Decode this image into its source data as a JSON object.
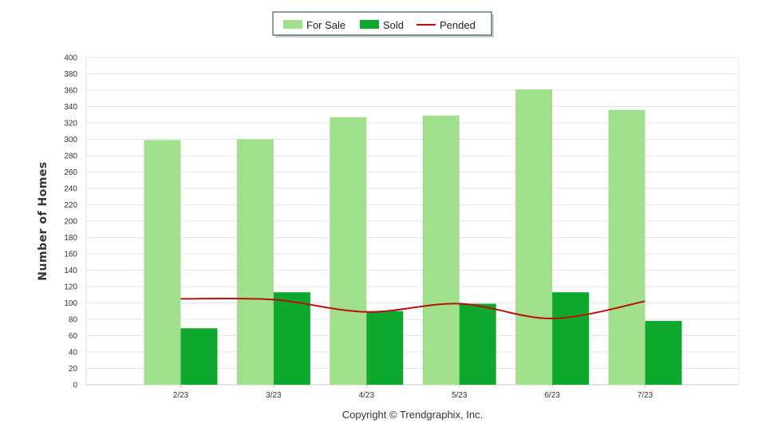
{
  "chart_data": {
    "type": "bar",
    "categories": [
      "2/23",
      "3/23",
      "4/23",
      "5/23",
      "6/23",
      "7/23"
    ],
    "series": [
      {
        "name": "For Sale",
        "kind": "bar",
        "color": "#a0df8b",
        "values": [
          299,
          300,
          327,
          329,
          361,
          336
        ]
      },
      {
        "name": "Sold",
        "kind": "bar",
        "color": "#0fa82e",
        "values": [
          69,
          113,
          90,
          99,
          113,
          78
        ]
      },
      {
        "name": "Pended",
        "kind": "line",
        "color": "#b8100f",
        "values": [
          105,
          104,
          89,
          99,
          81,
          102
        ]
      }
    ],
    "title": "",
    "xlabel": "",
    "ylabel": "Number of Homes",
    "ylim": [
      0,
      400
    ],
    "ytick_step": 20,
    "grid": true,
    "legend_position": "top-center",
    "footer": "Copyright © Trendgraphix, Inc."
  }
}
